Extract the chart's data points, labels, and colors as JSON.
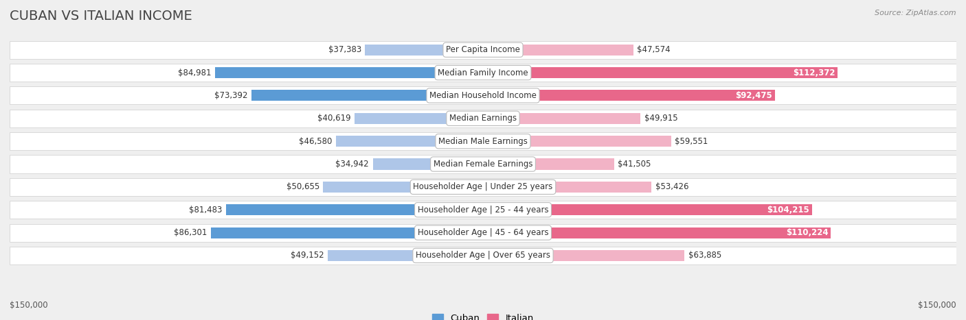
{
  "title": "CUBAN VS ITALIAN INCOME",
  "source": "Source: ZipAtlas.com",
  "categories": [
    "Per Capita Income",
    "Median Family Income",
    "Median Household Income",
    "Median Earnings",
    "Median Male Earnings",
    "Median Female Earnings",
    "Householder Age | Under 25 years",
    "Householder Age | 25 - 44 years",
    "Householder Age | 45 - 64 years",
    "Householder Age | Over 65 years"
  ],
  "cuban_values": [
    37383,
    84981,
    73392,
    40619,
    46580,
    34942,
    50655,
    81483,
    86301,
    49152
  ],
  "italian_values": [
    47574,
    112372,
    92475,
    49915,
    59551,
    41505,
    53426,
    104215,
    110224,
    63885
  ],
  "cuban_labels": [
    "$37,383",
    "$84,981",
    "$73,392",
    "$40,619",
    "$46,580",
    "$34,942",
    "$50,655",
    "$81,483",
    "$86,301",
    "$49,152"
  ],
  "italian_labels": [
    "$47,574",
    "$112,372",
    "$92,475",
    "$49,915",
    "$59,551",
    "$41,505",
    "$53,426",
    "$104,215",
    "$110,224",
    "$63,885"
  ],
  "cuban_color_dark": "#5b9bd5",
  "cuban_color_light": "#aec6e8",
  "italian_color_dark": "#e8678a",
  "italian_color_light": "#f2b3c6",
  "max_value": 150000,
  "background_color": "#efefef",
  "row_bg_light": "#ffffff",
  "row_bg_dark": "#e8e8e8",
  "label_font_size": 8.5,
  "title_font_size": 14,
  "axis_label": "$150,000",
  "cuban_thresh": 65000,
  "italian_thresh": 65000
}
